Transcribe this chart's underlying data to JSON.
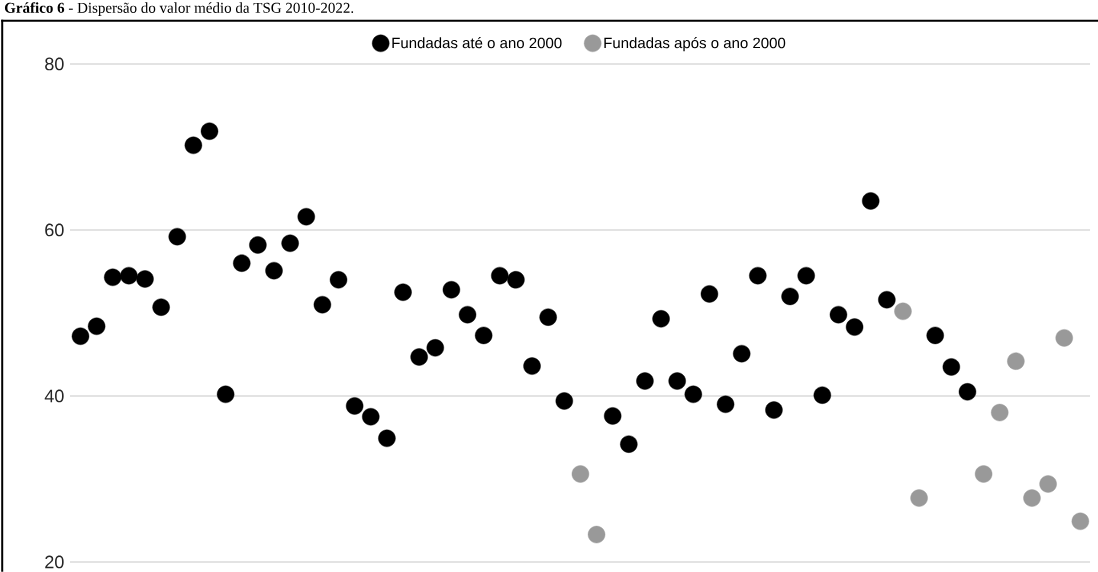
{
  "chart_data": {
    "type": "scatter",
    "title": "**Gráfico 6** - Dispersão do valor médio da TSG 2010-2022.",
    "categories": [
      null,
      null,
      null,
      null,
      null,
      null,
      null,
      null,
      null,
      null,
      null,
      null,
      null,
      null,
      null,
      null,
      null,
      null,
      null,
      null,
      null,
      null,
      null,
      null,
      null,
      null,
      null,
      null,
      null,
      null,
      null,
      null,
      null,
      null,
      null,
      null,
      null,
      null,
      null,
      null,
      null,
      null,
      null,
      null,
      null,
      null,
      null,
      null,
      null,
      null,
      null,
      null,
      null,
      null,
      null,
      null,
      null,
      null,
      null,
      null,
      null,
      null,
      null
    ],
    "series": [
      {
        "name": "Fundadas até o ano 2000",
        "color": "#000000",
        "values": [
          47.2,
          48.4,
          54.3,
          54.5,
          54.1,
          50.7,
          59.2,
          70.2,
          71.9,
          40.2,
          56.0,
          58.2,
          55.1,
          58.4,
          61.6,
          51.0,
          54.0,
          38.8,
          37.5,
          34.9,
          52.5,
          44.7,
          45.8,
          52.8,
          49.8,
          47.3,
          54.5,
          54.0,
          43.6,
          49.5,
          39.4,
          null,
          null,
          37.6,
          34.2,
          41.8,
          49.3,
          41.8,
          40.2,
          52.3,
          39.0,
          45.1,
          54.5,
          38.3,
          52.0,
          54.5,
          40.1,
          49.8,
          48.3,
          63.5,
          51.6,
          null,
          null,
          47.3,
          43.5,
          40.5,
          null,
          null,
          null,
          null,
          null,
          null,
          null
        ]
      },
      {
        "name": "Fundadas após o ano 2000",
        "color": "#999999",
        "values": [
          null,
          null,
          null,
          null,
          null,
          null,
          null,
          null,
          null,
          null,
          null,
          null,
          null,
          null,
          null,
          null,
          null,
          null,
          null,
          null,
          null,
          null,
          null,
          null,
          null,
          null,
          null,
          null,
          null,
          null,
          null,
          30.6,
          23.3,
          null,
          null,
          null,
          null,
          null,
          null,
          null,
          null,
          null,
          null,
          null,
          null,
          null,
          null,
          null,
          null,
          null,
          null,
          50.2,
          27.7,
          null,
          null,
          null,
          30.6,
          38.0,
          44.2,
          27.7,
          29.4,
          47.0,
          24.9
        ]
      }
    ],
    "ylim": [
      20,
      80
    ],
    "yticks": [
      20,
      40,
      60,
      80
    ],
    "grid": "y",
    "legend": "top",
    "marker": "circle",
    "tick_labels": "y"
  }
}
